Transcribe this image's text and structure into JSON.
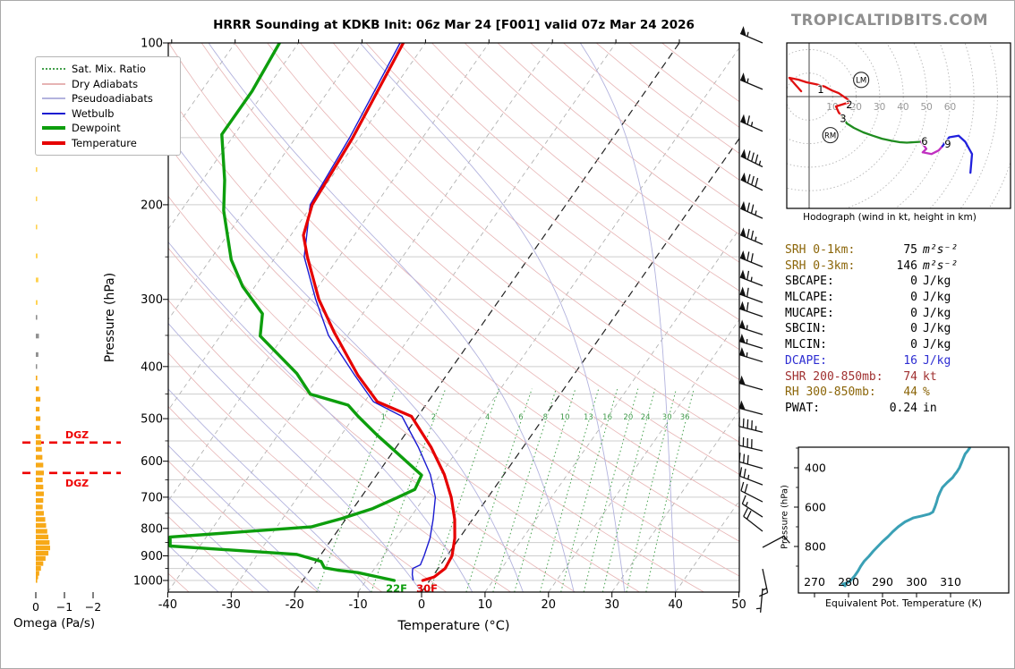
{
  "title": "HRRR Sounding at KDKB Init: 06z Mar 24 [F001] valid 07z Mar 24 2026",
  "logo": "TROPICALTIDBITS.COM",
  "skewt": {
    "xlabel": "Temperature (°C)",
    "ylabel": "Pressure (hPa)",
    "pressure_ticks": [
      100,
      200,
      300,
      400,
      500,
      600,
      700,
      800,
      900,
      1000
    ],
    "temp_ticks": [
      -40,
      -30,
      -20,
      -10,
      0,
      10,
      20,
      30,
      40,
      50
    ],
    "surface_temp_label": "30F",
    "surface_dewpoint_label": "22F",
    "dgz_label": "DGZ",
    "dgz_pressures": [
      554,
      631
    ],
    "mixing_ratio_labels": [
      1,
      2,
      4,
      6,
      8,
      10,
      13,
      16,
      20,
      24,
      30,
      36
    ],
    "legend": [
      {
        "label": "Sat. Mix. Ratio",
        "style": "dotted",
        "color": "#44a04c",
        "weight": 2
      },
      {
        "label": "Dry Adiabats",
        "style": "solid",
        "color": "#e7b4b4",
        "weight": 2
      },
      {
        "label": "Pseudoadiabats",
        "style": "solid",
        "color": "#b3b3de",
        "weight": 2
      },
      {
        "label": "Wetbulb",
        "style": "solid",
        "color": "#1a1ad1",
        "weight": 2
      },
      {
        "label": "Dewpoint",
        "style": "solid",
        "color": "#0d9e0d",
        "weight": 4
      },
      {
        "label": "Temperature",
        "style": "solid",
        "color": "#e60000",
        "weight": 4
      }
    ]
  },
  "stats": {
    "rows": [
      {
        "label": "SRH 0-1km:",
        "value": "75",
        "unit": "m²s⁻²",
        "label_color": "#8b6508",
        "value_color": "#000000",
        "unit_italic": true
      },
      {
        "label": "SRH 0-3km:",
        "value": "146",
        "unit": "m²s⁻²",
        "label_color": "#8b6508",
        "value_color": "#000000",
        "unit_italic": true
      },
      {
        "label": "SBCAPE:",
        "value": "0",
        "unit": "J/kg",
        "label_color": "#000000",
        "value_color": "#000000",
        "unit_italic": false
      },
      {
        "label": "MLCAPE:",
        "value": "0",
        "unit": "J/kg",
        "label_color": "#000000",
        "value_color": "#000000",
        "unit_italic": false
      },
      {
        "label": "MUCAPE:",
        "value": "0",
        "unit": "J/kg",
        "label_color": "#000000",
        "value_color": "#000000",
        "unit_italic": false
      },
      {
        "label": "SBCIN:",
        "value": "0",
        "unit": "J/kg",
        "label_color": "#000000",
        "value_color": "#000000",
        "unit_italic": false
      },
      {
        "label": "MLCIN:",
        "value": "0",
        "unit": "J/kg",
        "label_color": "#000000",
        "value_color": "#000000",
        "unit_italic": false
      },
      {
        "label": "DCAPE:",
        "value": "16",
        "unit": "J/kg",
        "label_color": "#2d2dd2",
        "value_color": "#2d2dd2",
        "unit_italic": false
      },
      {
        "label": "SHR 200-850mb:",
        "value": "74",
        "unit": "kt",
        "label_color": "#a03030",
        "value_color": "#a03030",
        "unit_italic": false
      },
      {
        "label": "RH 300-850mb:",
        "value": "44",
        "unit": "%",
        "label_color": "#8b6508",
        "value_color": "#8b6508",
        "unit_italic": false
      },
      {
        "label": "PWAT:",
        "value": "0.24",
        "unit": "in",
        "label_color": "#000000",
        "value_color": "#000000",
        "unit_italic": false
      }
    ]
  },
  "chart_data": {
    "type": "skewt-sounding",
    "pressure_range_hPa": [
      100,
      1050
    ],
    "temp_axis_range_C": [
      -40,
      50
    ],
    "temperature_C": [
      [
        100,
        -63.5
      ],
      [
        150,
        -61
      ],
      [
        200,
        -60
      ],
      [
        228,
        -58
      ],
      [
        250,
        -55
      ],
      [
        300,
        -48.5
      ],
      [
        345,
        -42.5
      ],
      [
        415,
        -34
      ],
      [
        465,
        -28
      ],
      [
        495,
        -21
      ],
      [
        565,
        -14.5
      ],
      [
        635,
        -9.4
      ],
      [
        700,
        -5.8
      ],
      [
        770,
        -2.8
      ],
      [
        835,
        -0.7
      ],
      [
        900,
        0.8
      ],
      [
        950,
        1.1
      ],
      [
        985,
        0.3
      ],
      [
        1000,
        -1.1
      ]
    ],
    "dewpoint_C": [
      [
        100,
        -83
      ],
      [
        123,
        -82
      ],
      [
        148,
        -82
      ],
      [
        180,
        -76.5
      ],
      [
        205,
        -73.3
      ],
      [
        253,
        -66.7
      ],
      [
        284,
        -61.9
      ],
      [
        319,
        -55.8
      ],
      [
        351,
        -53.7
      ],
      [
        412,
        -43.8
      ],
      [
        450,
        -39.4
      ],
      [
        472,
        -32.2
      ],
      [
        495,
        -29.4
      ],
      [
        536,
        -24.4
      ],
      [
        582,
        -18.9
      ],
      [
        637,
        -12.9
      ],
      [
        677,
        -12.4
      ],
      [
        702,
        -14.3
      ],
      [
        735,
        -16.9
      ],
      [
        767,
        -20.7
      ],
      [
        795,
        -24.6
      ],
      [
        830,
        -45.7
      ],
      [
        863,
        -44.7
      ],
      [
        894,
        -23.9
      ],
      [
        922,
        -19.2
      ],
      [
        947,
        -18.0
      ],
      [
        957,
        -15.6
      ],
      [
        967,
        -12.2
      ],
      [
        1000,
        -5.6
      ]
    ],
    "wetbulb_C": [
      [
        100,
        -64
      ],
      [
        150,
        -61.5
      ],
      [
        200,
        -60.3
      ],
      [
        250,
        -55.5
      ],
      [
        300,
        -49
      ],
      [
        350,
        -43
      ],
      [
        415,
        -34.5
      ],
      [
        465,
        -28.6
      ],
      [
        495,
        -22.5
      ],
      [
        565,
        -16.5
      ],
      [
        635,
        -11.6
      ],
      [
        700,
        -8.3
      ],
      [
        770,
        -6.2
      ],
      [
        835,
        -4.6
      ],
      [
        900,
        -3.6
      ],
      [
        935,
        -3.2
      ],
      [
        950,
        -4.0
      ],
      [
        975,
        -3.4
      ],
      [
        1000,
        -2.6
      ]
    ],
    "wind_barbs_p_kt_dir": [
      [
        100,
        55,
        293
      ],
      [
        122,
        55,
        293
      ],
      [
        146,
        65,
        294
      ],
      [
        170,
        85,
        296
      ],
      [
        188,
        80,
        296
      ],
      [
        212,
        75,
        294
      ],
      [
        237,
        75,
        293
      ],
      [
        261,
        70,
        292
      ],
      [
        283,
        65,
        291
      ],
      [
        304,
        60,
        290
      ],
      [
        323,
        60,
        289
      ],
      [
        349,
        55,
        288
      ],
      [
        370,
        55,
        287
      ],
      [
        392,
        55,
        287
      ],
      [
        442,
        50,
        286
      ],
      [
        491,
        50,
        285
      ],
      [
        530,
        45,
        284
      ],
      [
        574,
        40,
        283
      ],
      [
        619,
        30,
        286
      ],
      [
        664,
        25,
        291
      ],
      [
        714,
        20,
        297
      ],
      [
        762,
        15,
        303
      ],
      [
        810,
        20,
        308
      ],
      [
        868,
        10,
        62
      ],
      [
        952,
        15,
        168
      ],
      [
        1035,
        5,
        185
      ]
    ],
    "omega": {
      "xlabel": "Omega (Pa/s)",
      "ticks": [
        0,
        -1,
        -2
      ],
      "bars_p_value_shade": [
        [
          115,
          -0.02,
          "pale"
        ],
        [
          132,
          -0.04,
          "pale"
        ],
        [
          150,
          -0.03,
          "pale"
        ],
        [
          172,
          -0.05,
          "pale"
        ],
        [
          195,
          -0.04,
          "pale"
        ],
        [
          220,
          -0.05,
          "pale"
        ],
        [
          249,
          -0.06,
          "pale"
        ],
        [
          276,
          -0.09,
          "pale"
        ],
        [
          304,
          -0.06,
          "pale"
        ],
        [
          324,
          -0.05,
          "gray"
        ],
        [
          351,
          -0.11,
          "gray"
        ],
        [
          380,
          -0.09,
          "gray"
        ],
        [
          400,
          -0.04,
          "gray"
        ],
        [
          420,
          -0.05,
          "orange"
        ],
        [
          440,
          -0.11,
          "orange"
        ],
        [
          460,
          -0.16,
          "orange"
        ],
        [
          480,
          -0.13,
          "orange"
        ],
        [
          500,
          -0.16,
          "orange"
        ],
        [
          520,
          -0.14,
          "orange"
        ],
        [
          540,
          -0.17,
          "orange"
        ],
        [
          554,
          -0.19,
          "orange"
        ],
        [
          570,
          -0.21,
          "orange"
        ],
        [
          590,
          -0.23,
          "orange"
        ],
        [
          610,
          -0.26,
          "orange"
        ],
        [
          631,
          -0.28,
          "orange"
        ],
        [
          650,
          -0.24,
          "orange"
        ],
        [
          670,
          -0.26,
          "orange"
        ],
        [
          690,
          -0.28,
          "orange"
        ],
        [
          710,
          -0.26,
          "orange"
        ],
        [
          730,
          -0.24,
          "orange"
        ],
        [
          750,
          -0.28,
          "orange"
        ],
        [
          770,
          -0.33,
          "orange"
        ],
        [
          790,
          -0.36,
          "orange"
        ],
        [
          810,
          -0.4,
          "orange"
        ],
        [
          830,
          -0.44,
          "orange"
        ],
        [
          850,
          -0.48,
          "orange"
        ],
        [
          870,
          -0.5,
          "orange"
        ],
        [
          890,
          -0.44,
          "orange"
        ],
        [
          910,
          -0.34,
          "orange"
        ],
        [
          930,
          -0.26,
          "orange"
        ],
        [
          950,
          -0.18,
          "orange"
        ],
        [
          970,
          -0.12,
          "orange"
        ],
        [
          985,
          -0.08,
          "orange"
        ],
        [
          1000,
          -0.05,
          "orange"
        ]
      ]
    },
    "hodograph": {
      "caption": "Hodograph (wind in kt, height in km)",
      "ring_step_kt": 10,
      "ring_labels": [
        10,
        20,
        30,
        40,
        50,
        60
      ],
      "segments": [
        {
          "color": "#e01010",
          "points": [
            [
              -3.4,
              2.3
            ],
            [
              -8.4,
              8.0
            ],
            [
              -4.5,
              7.2
            ],
            [
              -1.1,
              6.1
            ],
            [
              3.0,
              5.2
            ],
            [
              6.5,
              4.3
            ],
            [
              9.5,
              2.7
            ],
            [
              12.5,
              1.5
            ],
            [
              16.3,
              -1.1
            ],
            [
              17.5,
              -2.3
            ],
            [
              11.4,
              -4.2
            ],
            [
              12.6,
              -6.8
            ],
            [
              14.4,
              -8.7
            ]
          ]
        },
        {
          "color": "#1f8c1f",
          "points": [
            [
              14.4,
              -8.7
            ],
            [
              16.0,
              -11.4
            ],
            [
              19.0,
              -13.3
            ],
            [
              23.0,
              -15.2
            ],
            [
              27.0,
              -16.6
            ],
            [
              31.0,
              -17.9
            ],
            [
              35.0,
              -18.8
            ],
            [
              38.5,
              -19.4
            ],
            [
              41.5,
              -19.6
            ],
            [
              44.5,
              -19.4
            ],
            [
              47.5,
              -19.2
            ]
          ]
        },
        {
          "color": "#c030c0",
          "points": [
            [
              47.5,
              -19.2
            ],
            [
              49.8,
              -22.2
            ],
            [
              48.2,
              -23.7
            ],
            [
              52.0,
              -24.4
            ],
            [
              55.0,
              -22.9
            ],
            [
              56.6,
              -21.1
            ]
          ]
        },
        {
          "color": "#2020dd",
          "points": [
            [
              56.6,
              -21.1
            ],
            [
              59.5,
              -17.3
            ],
            [
              63.5,
              -16.6
            ],
            [
              66.3,
              -19.2
            ],
            [
              69.2,
              -24.4
            ],
            [
              68.5,
              -32.4
            ]
          ]
        }
      ],
      "height_labels": [
        {
          "text": "1",
          "u": 4.9,
          "v": 3.0
        },
        {
          "text": "2",
          "u": 17.1,
          "v": -3.4
        },
        {
          "text": "3",
          "u": 14.4,
          "v": -9.4
        },
        {
          "text": "6",
          "u": 49.0,
          "v": -19.0
        },
        {
          "text": "9",
          "u": 58.9,
          "v": -20.2
        }
      ],
      "storm_motions": [
        {
          "text": "LM",
          "u": 22.1,
          "v": 7.1
        },
        {
          "text": "RM",
          "u": 9.0,
          "v": -16.4
        }
      ]
    },
    "theta_e": {
      "xlabel": "Equivalent Pot. Temperature (K)",
      "ylabel": "Pressure (hPa)",
      "x_ticks": [
        270,
        280,
        290,
        300,
        310
      ],
      "y_ticks": [
        400,
        600,
        800
      ],
      "profile_p_K": [
        [
          1000,
          279
        ],
        [
          992,
          278.3
        ],
        [
          985,
          279.5
        ],
        [
          975,
          280.5
        ],
        [
          950,
          281.8
        ],
        [
          925,
          282.8
        ],
        [
          900,
          283.6
        ],
        [
          875,
          284.6
        ],
        [
          850,
          286
        ],
        [
          825,
          287.2
        ],
        [
          800,
          288.6
        ],
        [
          775,
          290
        ],
        [
          750,
          291.6
        ],
        [
          725,
          293
        ],
        [
          700,
          294.6
        ],
        [
          675,
          296.6
        ],
        [
          655,
          299
        ],
        [
          645,
          301.5
        ],
        [
          635,
          303.8
        ],
        [
          625,
          304.8
        ],
        [
          600,
          305.4
        ],
        [
          575,
          305.9
        ],
        [
          550,
          306.3
        ],
        [
          525,
          306.9
        ],
        [
          500,
          307.6
        ],
        [
          475,
          309
        ],
        [
          450,
          310.6
        ],
        [
          435,
          311.2
        ],
        [
          420,
          311.9
        ],
        [
          400,
          312.6
        ],
        [
          375,
          313.2
        ],
        [
          350,
          313.8
        ],
        [
          330,
          314.3
        ],
        [
          315,
          315
        ],
        [
          300,
          315.6
        ]
      ]
    },
    "colors": {
      "temperature": "#e60000",
      "dewpoint": "#0d9e0d",
      "wetbulb": "#1a1ad1",
      "dry_adiabat": "#e7b4b4",
      "pseudoadiabat": "#b3b3de",
      "mixing_ratio": "#44a04c",
      "isotherm": "#aaaaaa",
      "isotherm_highlight": "#222222",
      "grid": "#cdcdcd",
      "omega_orange": "#f7a918",
      "omega_pale": "#ffd24f",
      "omega_gray": "#909090",
      "dgz": "#ee0000",
      "theta_e": "#3aa0b5",
      "barb": "#111111"
    }
  }
}
